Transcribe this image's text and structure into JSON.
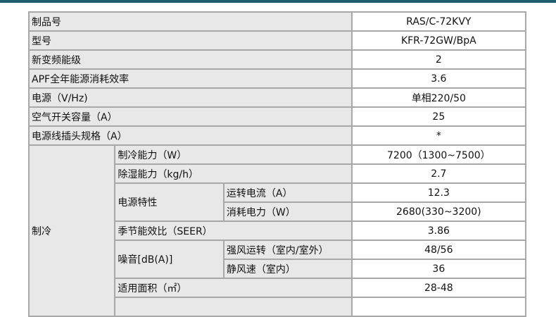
{
  "colors": {
    "topbar": "#1f5e6e",
    "label_bg": "#e8e8e8",
    "border": "#a8a8a8"
  },
  "rows": [
    {
      "label": "制品号",
      "value": "RAS/C-72KVY"
    },
    {
      "label": "型号",
      "value": "KFR-72GW/BpA"
    },
    {
      "label": "新变频能级",
      "value": "2"
    },
    {
      "label": "APF全年能源消耗效率",
      "value": "3.6"
    },
    {
      "label": "电源（V/Hz)",
      "value": "单相220/50"
    },
    {
      "label": "空气开关容量（A）",
      "value": "25"
    },
    {
      "label": "电源线插头规格（A）",
      "value": "*"
    }
  ],
  "cooling": {
    "label": "制冷",
    "capacity": {
      "label": "制冷能力（W）",
      "value": "7200（1300~7500）"
    },
    "dehumid": {
      "label": "除湿能力（kg/h）",
      "value": "2.7"
    },
    "power": {
      "label": "电源特性",
      "current_label": "运转电流（A）",
      "current_value": "12.3",
      "consumption_label": "消耗电力（W）",
      "consumption_value": "2680(330~3200)"
    },
    "seer": {
      "label": "季节能效比（SEER）",
      "value": "3.86"
    },
    "noise": {
      "label": "噪音[dB(A)]",
      "strong_label": "强风运转（室内/室外）",
      "strong_value": "48/56",
      "quiet_label": "静风速（室内）",
      "quiet_value": "36"
    },
    "area": {
      "label": "适用面积（㎡）",
      "value": "28-48"
    }
  }
}
